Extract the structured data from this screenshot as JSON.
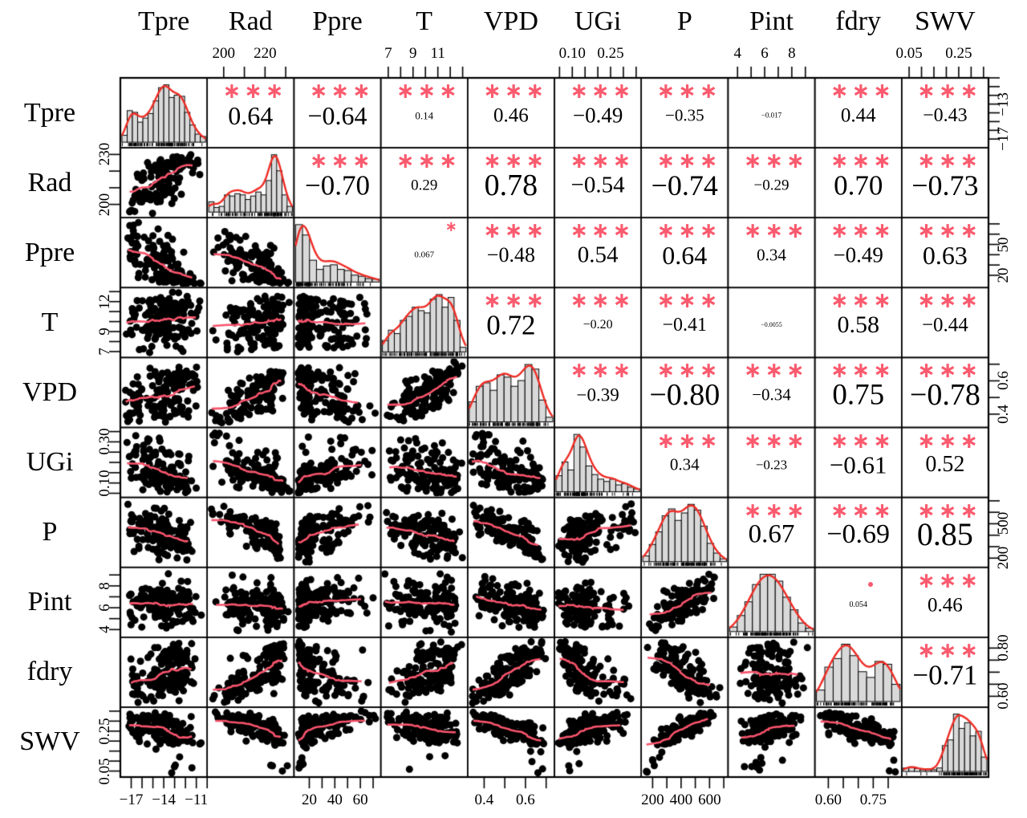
{
  "chart_data": {
    "type": "scatterplot-matrix",
    "title": "",
    "variables": [
      "Tpre",
      "Rad",
      "Ppre",
      "T",
      "VPD",
      "UGi",
      "P",
      "Pint",
      "fdry",
      "SWV"
    ],
    "panels": {
      "diagonal": "histogram with red density curve and rug",
      "lower_triangle": "scatterplot, black points with pink smooth curve",
      "upper_triangle": "correlation coefficient with red significance stars, text size proportional to |r|"
    },
    "correlations": [
      {
        "row": "Tpre",
        "col": "Rad",
        "value": "0.64",
        "stars": "***"
      },
      {
        "row": "Tpre",
        "col": "Ppre",
        "value": "−0.64",
        "stars": "***"
      },
      {
        "row": "Tpre",
        "col": "T",
        "value": "0.14",
        "stars": "***"
      },
      {
        "row": "Tpre",
        "col": "VPD",
        "value": "0.46",
        "stars": "***"
      },
      {
        "row": "Tpre",
        "col": "UGi",
        "value": "−0.49",
        "stars": "***"
      },
      {
        "row": "Tpre",
        "col": "P",
        "value": "−0.35",
        "stars": "***"
      },
      {
        "row": "Tpre",
        "col": "Pint",
        "value": "−0.017",
        "stars": ""
      },
      {
        "row": "Tpre",
        "col": "fdry",
        "value": "0.44",
        "stars": "***"
      },
      {
        "row": "Tpre",
        "col": "SWV",
        "value": "−0.43",
        "stars": "***"
      },
      {
        "row": "Rad",
        "col": "Ppre",
        "value": "−0.70",
        "stars": "***"
      },
      {
        "row": "Rad",
        "col": "T",
        "value": "0.29",
        "stars": "***"
      },
      {
        "row": "Rad",
        "col": "VPD",
        "value": "0.78",
        "stars": "***"
      },
      {
        "row": "Rad",
        "col": "UGi",
        "value": "−0.54",
        "stars": "***"
      },
      {
        "row": "Rad",
        "col": "P",
        "value": "−0.74",
        "stars": "***"
      },
      {
        "row": "Rad",
        "col": "Pint",
        "value": "−0.29",
        "stars": "***"
      },
      {
        "row": "Rad",
        "col": "fdry",
        "value": "0.70",
        "stars": "***"
      },
      {
        "row": "Rad",
        "col": "SWV",
        "value": "−0.73",
        "stars": "***"
      },
      {
        "row": "Ppre",
        "col": "T",
        "value": "0.067",
        "stars": "*"
      },
      {
        "row": "Ppre",
        "col": "VPD",
        "value": "−0.48",
        "stars": "***"
      },
      {
        "row": "Ppre",
        "col": "UGi",
        "value": "0.54",
        "stars": "***"
      },
      {
        "row": "Ppre",
        "col": "P",
        "value": "0.64",
        "stars": "***"
      },
      {
        "row": "Ppre",
        "col": "Pint",
        "value": "0.34",
        "stars": "***"
      },
      {
        "row": "Ppre",
        "col": "fdry",
        "value": "−0.49",
        "stars": "***"
      },
      {
        "row": "Ppre",
        "col": "SWV",
        "value": "0.63",
        "stars": "***"
      },
      {
        "row": "T",
        "col": "VPD",
        "value": "0.72",
        "stars": "***"
      },
      {
        "row": "T",
        "col": "UGi",
        "value": "−0.20",
        "stars": "***"
      },
      {
        "row": "T",
        "col": "P",
        "value": "−0.41",
        "stars": "***"
      },
      {
        "row": "T",
        "col": "Pint",
        "value": "−0.0055",
        "stars": ""
      },
      {
        "row": "T",
        "col": "fdry",
        "value": "0.58",
        "stars": "***"
      },
      {
        "row": "T",
        "col": "SWV",
        "value": "−0.44",
        "stars": "***"
      },
      {
        "row": "VPD",
        "col": "UGi",
        "value": "−0.39",
        "stars": "***"
      },
      {
        "row": "VPD",
        "col": "P",
        "value": "−0.80",
        "stars": "***"
      },
      {
        "row": "VPD",
        "col": "Pint",
        "value": "−0.34",
        "stars": "***"
      },
      {
        "row": "VPD",
        "col": "fdry",
        "value": "0.75",
        "stars": "***"
      },
      {
        "row": "VPD",
        "col": "SWV",
        "value": "−0.78",
        "stars": "***"
      },
      {
        "row": "UGi",
        "col": "P",
        "value": "0.34",
        "stars": "***"
      },
      {
        "row": "UGi",
        "col": "Pint",
        "value": "−0.23",
        "stars": "***"
      },
      {
        "row": "UGi",
        "col": "fdry",
        "value": "−0.61",
        "stars": "***"
      },
      {
        "row": "UGi",
        "col": "SWV",
        "value": "0.52",
        "stars": "***"
      },
      {
        "row": "P",
        "col": "Pint",
        "value": "0.67",
        "stars": "***"
      },
      {
        "row": "P",
        "col": "fdry",
        "value": "−0.69",
        "stars": "***"
      },
      {
        "row": "P",
        "col": "SWV",
        "value": "0.85",
        "stars": "***"
      },
      {
        "row": "Pint",
        "col": "fdry",
        "value": "0.054",
        "stars": "."
      },
      {
        "row": "Pint",
        "col": "SWV",
        "value": "0.46",
        "stars": "***"
      },
      {
        "row": "fdry",
        "col": "SWV",
        "value": "−0.71",
        "stars": "***"
      }
    ],
    "axes": {
      "Tpre": {
        "min": -18,
        "max": -10,
        "ticks": [
          -17,
          -16,
          -15,
          -14,
          -13,
          -12,
          -11,
          -10
        ],
        "h_labels": [
          [
            -17,
            "−17"
          ],
          [
            -14,
            "−14"
          ],
          [
            -11,
            "−11"
          ]
        ],
        "v_labels": [
          [
            -17,
            "−17"
          ],
          [
            -13,
            "−13"
          ]
        ]
      },
      "Rad": {
        "min": 192,
        "max": 234,
        "ticks": [
          200,
          210,
          220,
          230
        ],
        "h_labels": [
          [
            200,
            "200"
          ],
          [
            220,
            "220"
          ]
        ],
        "v_labels": [
          [
            200,
            "200"
          ],
          [
            230,
            "230"
          ]
        ]
      },
      "Ppre": {
        "min": 8,
        "max": 76,
        "ticks": [
          20,
          30,
          40,
          50,
          60,
          70
        ],
        "h_labels": [
          [
            20,
            "20"
          ],
          [
            40,
            "40"
          ],
          [
            60,
            "60"
          ]
        ],
        "v_labels": [
          [
            20,
            "20"
          ],
          [
            50,
            "50"
          ]
        ]
      },
      "T": {
        "min": 6.4,
        "max": 13.4,
        "ticks": [
          7,
          8,
          9,
          10,
          11,
          12,
          13
        ],
        "h_labels": [
          [
            7,
            "7"
          ],
          [
            9,
            "9"
          ],
          [
            11,
            "11"
          ]
        ],
        "v_labels": [
          [
            7,
            "7"
          ],
          [
            9,
            "9"
          ],
          [
            12,
            "12"
          ]
        ]
      },
      "VPD": {
        "min": 0.32,
        "max": 0.74,
        "ticks": [
          0.4,
          0.5,
          0.6,
          0.7
        ],
        "h_labels": [
          [
            0.4,
            "0.4"
          ],
          [
            0.6,
            "0.6"
          ]
        ],
        "v_labels": [
          [
            0.4,
            "0.4"
          ],
          [
            0.6,
            "0.6"
          ]
        ]
      },
      "UGi": {
        "min": 0.03,
        "max": 0.37,
        "ticks": [
          0.05,
          0.1,
          0.15,
          0.2,
          0.25,
          0.3,
          0.35
        ],
        "h_labels": [
          [
            0.1,
            "0.10"
          ],
          [
            0.25,
            "0.25"
          ]
        ],
        "v_labels": [
          [
            0.1,
            "0.10"
          ],
          [
            0.3,
            "0.30"
          ]
        ]
      },
      "P": {
        "min": 120,
        "max": 730,
        "ticks": [
          200,
          300,
          400,
          500,
          600,
          700
        ],
        "h_labels": [
          [
            200,
            "200"
          ],
          [
            400,
            "400"
          ],
          [
            600,
            "600"
          ]
        ],
        "v_labels": [
          [
            200,
            "200"
          ],
          [
            500,
            "500"
          ]
        ]
      },
      "Pint": {
        "min": 3.3,
        "max": 9.7,
        "ticks": [
          4,
          5,
          6,
          7,
          8,
          9
        ],
        "h_labels": [
          [
            4,
            "4"
          ],
          [
            6,
            "6"
          ],
          [
            8,
            "8"
          ]
        ],
        "v_labels": [
          [
            4,
            "4"
          ],
          [
            6,
            "6"
          ],
          [
            8,
            "8"
          ]
        ]
      },
      "fdry": {
        "min": 0.555,
        "max": 0.845,
        "ticks": [
          0.6,
          0.65,
          0.7,
          0.75,
          0.8
        ],
        "h_labels": [
          [
            0.6,
            "0.60"
          ],
          [
            0.75,
            "0.75"
          ]
        ],
        "v_labels": [
          [
            0.6,
            "0.60"
          ],
          [
            0.8,
            "0.80"
          ]
        ]
      },
      "SWV": {
        "min": 0.02,
        "max": 0.37,
        "ticks": [
          0.05,
          0.1,
          0.15,
          0.2,
          0.25,
          0.3,
          0.35
        ],
        "h_labels": [
          [
            0.05,
            "0.05"
          ],
          [
            0.25,
            "0.25"
          ]
        ],
        "v_labels": [
          [
            0.05,
            "0.05"
          ],
          [
            0.25,
            "0.25"
          ]
        ]
      }
    },
    "histograms": {
      "Tpre": [
        0.12,
        0.55,
        0.52,
        0.35,
        0.42,
        0.5,
        0.72,
        0.95,
        1.0,
        0.78,
        0.82,
        0.8,
        0.52,
        0.3,
        0.14,
        0.1
      ],
      "Rad": [
        0.18,
        0.08,
        0.1,
        0.3,
        0.28,
        0.32,
        0.3,
        0.22,
        0.28,
        0.35,
        0.3,
        0.55,
        1.0,
        0.72,
        0.3,
        0.1
      ],
      "Ppre": [
        1.0,
        0.82,
        0.38,
        0.22,
        0.28,
        0.3,
        0.22,
        0.2,
        0.12,
        0.1,
        0.06,
        0.05
      ],
      "T": [
        0.2,
        0.38,
        0.32,
        0.55,
        0.62,
        0.78,
        0.72,
        0.68,
        0.92,
        1.0,
        0.78,
        0.95,
        0.55,
        0.08
      ],
      "VPD": [
        0.35,
        0.62,
        0.68,
        0.55,
        0.82,
        0.78,
        0.62,
        0.72,
        1.0,
        0.92,
        0.38,
        0.08
      ],
      "UGi": [
        0.28,
        0.52,
        0.38,
        1.0,
        0.78,
        0.45,
        0.3,
        0.22,
        0.18,
        0.22,
        0.12,
        0.14,
        0.08,
        0.05
      ],
      "P": [
        0.1,
        0.3,
        0.52,
        0.8,
        0.92,
        0.72,
        0.85,
        1.0,
        0.9,
        0.62,
        0.32,
        0.15,
        0.05
      ],
      "Pint": [
        0.08,
        0.28,
        0.52,
        0.82,
        1.0,
        1.0,
        0.88,
        0.6,
        0.38,
        0.15,
        0.06
      ],
      "fdry": [
        0.2,
        0.6,
        0.75,
        1.0,
        0.8,
        0.52,
        0.42,
        0.7,
        0.65,
        0.3
      ],
      "SWV": [
        0.06,
        0.08,
        0.05,
        0.03,
        0.03,
        0.03,
        0.06,
        0.45,
        0.55,
        1.0,
        0.75,
        0.85,
        0.62,
        0.7,
        0.25
      ]
    },
    "colors": {
      "background": "#ffffff",
      "grid": "#000000",
      "histogram_fill": "#d9d9d9",
      "histogram_border": "#000000",
      "density_line": "#ee2b24",
      "loess_line": "#f8546c",
      "scatter_point": "#000000",
      "significance": "#fa5a6e",
      "text": "#000000"
    }
  }
}
